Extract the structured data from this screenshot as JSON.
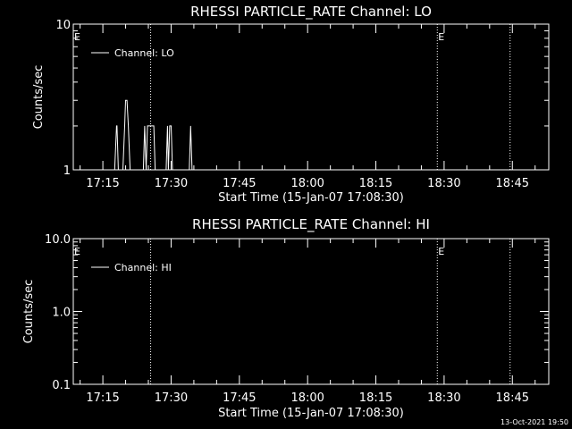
{
  "timestamp": "13-Oct-2021 19:50",
  "chart_data": [
    {
      "type": "line",
      "title": "RHESSI PARTICLE_RATE Channel: LO",
      "xlabel": "Start Time (15-Jan-07 17:08:30)",
      "ylabel": "Counts/sec",
      "yscale": "log",
      "ylim": [
        1,
        10
      ],
      "y_ticks": [
        "1",
        "10"
      ],
      "y_tick_values": [
        1,
        10
      ],
      "x_ticks": [
        "17:15",
        "17:30",
        "17:45",
        "18:00",
        "18:15",
        "18:30",
        "18:45"
      ],
      "x_tick_minutes": [
        1035,
        1050,
        1065,
        1080,
        1095,
        1110,
        1125
      ],
      "xlim_minutes": [
        1028.5,
        1133
      ],
      "legend": "top-left",
      "series": [
        {
          "name": "Channel: LO",
          "x_minutes": [
            1037.6,
            1038.0,
            1038.1,
            1038.4,
            1039.4,
            1039.8,
            1040.0,
            1040.3,
            1040.6,
            1041.0,
            1043.9,
            1044.2,
            1044.5,
            1044.8,
            1045.0,
            1046.2,
            1046.5,
            1046.8,
            1048.9,
            1049.2,
            1049.4,
            1049.7,
            1050.0,
            1050.3,
            1054.0,
            1054.3,
            1054.6
          ],
          "y": [
            1,
            2,
            2,
            1,
            1,
            2,
            3,
            3,
            2,
            1,
            1,
            2,
            1,
            2,
            2,
            2,
            1,
            1,
            1,
            2,
            1,
            2,
            2,
            1,
            1,
            2,
            1
          ]
        }
      ],
      "markers": [
        {
          "label": "E",
          "x_minutes": 1028.5
        },
        {
          "label": "",
          "x_minutes": 1045.5
        },
        {
          "label": "E",
          "x_minutes": 1108.5
        },
        {
          "label": "",
          "x_minutes": 1124.5
        }
      ]
    },
    {
      "type": "line",
      "title": "RHESSI PARTICLE_RATE Channel: HI",
      "xlabel": "Start Time (15-Jan-07 17:08:30)",
      "ylabel": "Counts/sec",
      "yscale": "log",
      "ylim": [
        0.1,
        10
      ],
      "y_ticks": [
        "0.1",
        "1.0",
        "10.0"
      ],
      "y_tick_values": [
        0.1,
        1,
        10
      ],
      "x_ticks": [
        "17:15",
        "17:30",
        "17:45",
        "18:00",
        "18:15",
        "18:30",
        "18:45"
      ],
      "x_tick_minutes": [
        1035,
        1050,
        1065,
        1080,
        1095,
        1110,
        1125
      ],
      "xlim_minutes": [
        1028.5,
        1133
      ],
      "legend": "top-left",
      "series": [
        {
          "name": "Channel: HI",
          "x_minutes": [],
          "y": []
        }
      ],
      "markers": [
        {
          "label": "E",
          "x_minutes": 1028.5
        },
        {
          "label": "",
          "x_minutes": 1045.5
        },
        {
          "label": "E",
          "x_minutes": 1108.5
        },
        {
          "label": "",
          "x_minutes": 1124.5
        }
      ]
    }
  ]
}
